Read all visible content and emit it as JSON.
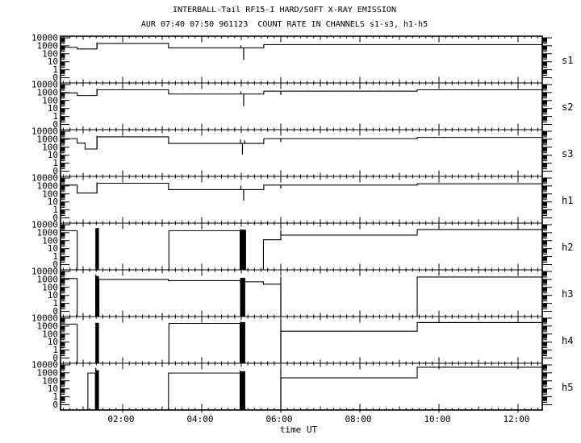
{
  "page": {
    "bg": "#ffffff",
    "fg": "#000000"
  },
  "header": {
    "title": "INTERBALL-Tail RF15-I HARD/SOFT X-RAY EMISSION",
    "subtitle": "AUR 07:40 07:50 961123  COUNT RATE IN CHANNELS s1-s3, h1-h5"
  },
  "chart_data": {
    "type": "line",
    "title": "INTERBALL-Tail RF15-I HARD/SOFT X-RAY EMISSION",
    "subtitle": "AUR 07:40 07:50 961123  COUNT RATE IN CHANNELS s1-s3, h1-h5",
    "xlabel": "time UT",
    "x_unit_hours": true,
    "x_range": [
      0.43,
      12.61
    ],
    "x_major_ticks": [
      2,
      4,
      6,
      8,
      10,
      12
    ],
    "x_major_labels": [
      "02:00",
      "04:00",
      "06:00",
      "08:00",
      "10:00",
      "12:00"
    ],
    "x_minor_step_minutes": 10,
    "y_scale": "log",
    "ylim": [
      0,
      10000
    ],
    "y_tick_labels": [
      "10000",
      "1000",
      "100",
      "10",
      "1",
      "0"
    ],
    "grid": false,
    "legend_position": "right-margin-channel-labels",
    "panels": [
      {
        "label": "s1",
        "steps": [
          [
            0.43,
            650
          ],
          [
            0.85,
            400
          ],
          [
            1.35,
            2000
          ],
          [
            3.16,
            550
          ],
          [
            5.57,
            1400
          ]
        ],
        "events": [
          {
            "type": "spike",
            "t": 1.35,
            "v0": 400,
            "v1": 2600
          },
          {
            "type": "spike",
            "t": 4.99,
            "v0": 550,
            "v1": 1150
          },
          {
            "type": "spike",
            "t": 5.06,
            "v0": 18,
            "v1": 550
          }
        ]
      },
      {
        "label": "s2",
        "steps": [
          [
            0.43,
            900
          ],
          [
            0.85,
            420
          ],
          [
            1.35,
            2200
          ],
          [
            3.16,
            650
          ],
          [
            5.57,
            1500
          ],
          [
            9.45,
            2200
          ]
        ],
        "events": [
          {
            "type": "spike",
            "t": 1.35,
            "v0": 420,
            "v1": 2900
          },
          {
            "type": "spike",
            "t": 4.99,
            "v0": 650,
            "v1": 1400
          },
          {
            "type": "spike",
            "t": 5.06,
            "v0": 20,
            "v1": 650
          },
          {
            "type": "spike",
            "t": 6.0,
            "v0": 500,
            "v1": 1500
          }
        ]
      },
      {
        "label": "s3",
        "steps": [
          [
            0.43,
            1200
          ],
          [
            0.85,
            330
          ],
          [
            1.05,
            60
          ],
          [
            1.35,
            2000
          ],
          [
            3.16,
            300
          ],
          [
            5.57,
            1200
          ],
          [
            9.45,
            1700
          ]
        ],
        "events": [
          {
            "type": "spike",
            "t": 1.35,
            "v0": 60,
            "v1": 2700
          },
          {
            "type": "spike",
            "t": 4.98,
            "v0": 300,
            "v1": 900
          },
          {
            "type": "spike",
            "t": 5.03,
            "v0": 12,
            "v1": 300
          },
          {
            "type": "spike",
            "t": 5.09,
            "v0": 300,
            "v1": 700
          },
          {
            "type": "spike",
            "t": 6.0,
            "v0": 450,
            "v1": 1200
          }
        ]
      },
      {
        "label": "h1",
        "steps": [
          [
            0.43,
            1300
          ],
          [
            0.85,
            130
          ],
          [
            1.35,
            2200
          ],
          [
            3.16,
            350
          ],
          [
            5.57,
            1300
          ],
          [
            9.45,
            1900
          ]
        ],
        "events": [
          {
            "type": "spike",
            "t": 1.35,
            "v0": 130,
            "v1": 2900
          },
          {
            "type": "spike",
            "t": 4.99,
            "v0": 350,
            "v1": 1100
          },
          {
            "type": "spike",
            "t": 5.06,
            "v0": 15,
            "v1": 350
          },
          {
            "type": "spike",
            "t": 6.0,
            "v0": 480,
            "v1": 1300
          }
        ]
      },
      {
        "label": "h2",
        "steps": [
          [
            0.43,
            1800
          ],
          [
            0.85,
            0
          ],
          [
            3.17,
            1800
          ],
          [
            4.97,
            0
          ],
          [
            5.56,
            130
          ],
          [
            6.0,
            490
          ],
          [
            9.45,
            2500
          ]
        ],
        "events": [
          {
            "type": "bar",
            "t0": 1.31,
            "t1": 1.4,
            "v0": 0,
            "v1": 3800
          },
          {
            "type": "bar",
            "t0": 4.97,
            "t1": 5.12,
            "v0": 0,
            "v1": 2400
          },
          {
            "type": "spike",
            "t": 4.98,
            "v0": 1800,
            "v1": 2800
          },
          {
            "type": "spike",
            "t": 6.0,
            "v0": 490,
            "v1": 2100
          }
        ]
      },
      {
        "label": "h3",
        "steps": [
          [
            0.43,
            1300
          ],
          [
            0.85,
            0
          ],
          [
            1.4,
            1000
          ],
          [
            3.16,
            700
          ],
          [
            4.97,
            500
          ],
          [
            5.56,
            250
          ],
          [
            6.0,
            0
          ],
          [
            9.45,
            2000
          ]
        ],
        "events": [
          {
            "type": "bar",
            "t0": 1.31,
            "t1": 1.4,
            "v0": 0,
            "v1": 2600
          },
          {
            "type": "spike",
            "t": 1.32,
            "v0": 0,
            "v1": 4200
          },
          {
            "type": "bar",
            "t0": 4.97,
            "t1": 5.1,
            "v0": 0,
            "v1": 1600
          },
          {
            "type": "spike",
            "t": 6.0,
            "v0": 0,
            "v1": 2100
          }
        ]
      },
      {
        "label": "h4",
        "steps": [
          [
            0.43,
            1800
          ],
          [
            0.85,
            0
          ],
          [
            3.17,
            2200
          ],
          [
            4.97,
            0
          ],
          [
            6.0,
            230
          ],
          [
            9.45,
            2800
          ]
        ],
        "events": [
          {
            "type": "bar",
            "t0": 1.31,
            "t1": 1.4,
            "v0": 0,
            "v1": 2600
          },
          {
            "type": "bar",
            "t0": 4.97,
            "t1": 5.1,
            "v0": 0,
            "v1": 3200
          },
          {
            "type": "spike",
            "t": 4.98,
            "v0": 2200,
            "v1": 3600
          },
          {
            "type": "spike",
            "t": 6.0,
            "v0": 0,
            "v1": 6000
          }
        ]
      },
      {
        "label": "h5",
        "steps": [
          [
            0.43,
            0
          ],
          [
            1.12,
            950
          ],
          [
            1.31,
            0
          ],
          [
            3.16,
            950
          ],
          [
            4.97,
            0
          ],
          [
            6.0,
            240
          ],
          [
            9.45,
            5000
          ]
        ],
        "events": [
          {
            "type": "bar",
            "t0": 1.31,
            "t1": 1.4,
            "v0": 0,
            "v1": 2200
          },
          {
            "type": "spike",
            "t": 1.32,
            "v0": 0,
            "v1": 4200
          },
          {
            "type": "bar",
            "t0": 4.97,
            "t1": 5.1,
            "v0": 0,
            "v1": 1600
          },
          {
            "type": "spike",
            "t": 4.97,
            "v0": 950,
            "v1": 1900
          },
          {
            "type": "spike",
            "t": 6.0,
            "v0": 0,
            "v1": 4200
          }
        ]
      }
    ]
  }
}
